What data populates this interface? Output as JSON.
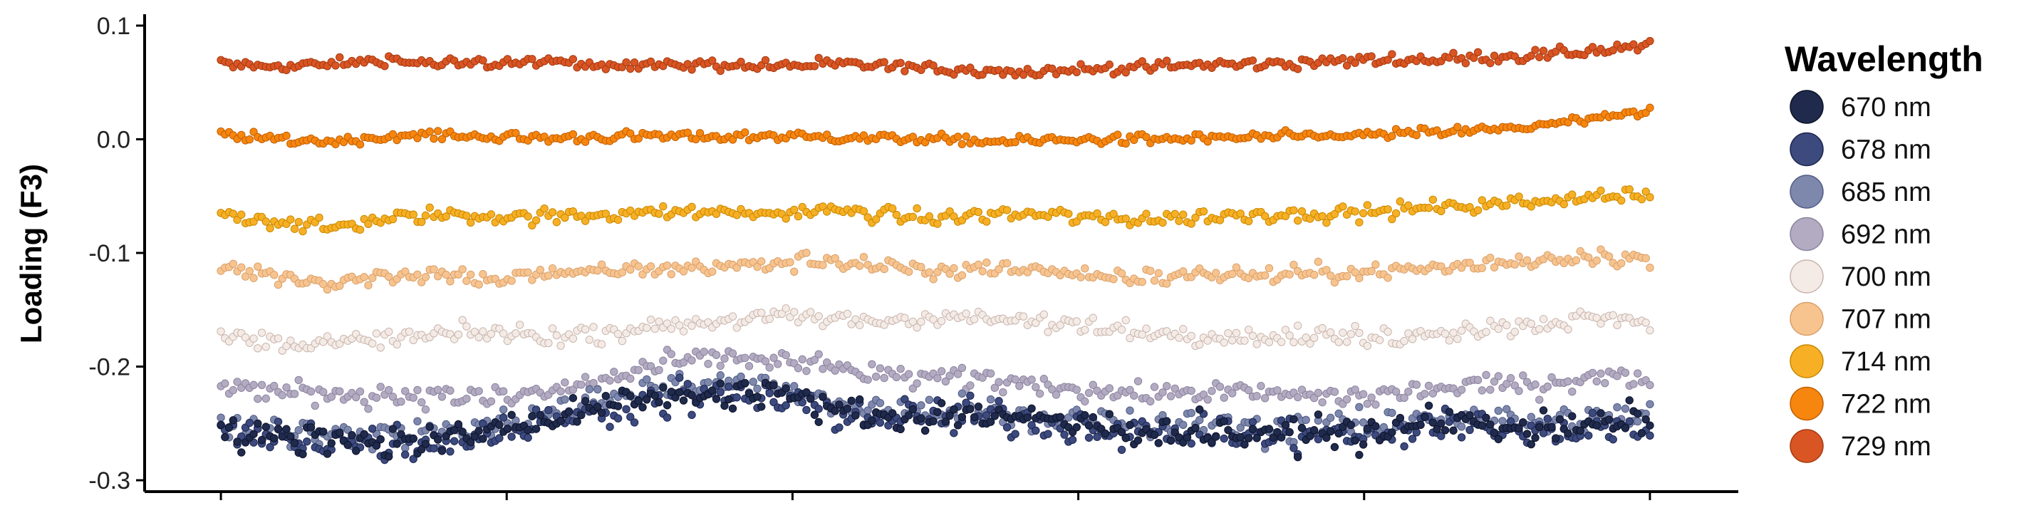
{
  "chart_data": {
    "type": "scatter",
    "title": "",
    "xlabel": "",
    "ylabel": "Loading (F3)",
    "ylim": [
      -0.31,
      0.11
    ],
    "xlim": [
      -10,
      1010
    ],
    "y_ticks": [
      "0.1",
      "0.0",
      "-0.1",
      "-0.2",
      "-0.3"
    ],
    "y_tick_values": [
      0.1,
      0.0,
      -0.1,
      -0.2,
      -0.3
    ],
    "x_ticks": [
      0,
      200,
      400,
      600,
      800,
      1000
    ],
    "x_tick_labels_shown": false,
    "points_per_series": 350,
    "grid": false,
    "legend": {
      "title": "Wavelength",
      "placement": "right"
    },
    "series": [
      {
        "name": "670 nm",
        "color": "#1f2a4d",
        "outline": "#0d1328",
        "spread": 0.011,
        "y": [
          -0.26,
          -0.262,
          -0.262,
          -0.266,
          -0.264,
          -0.254,
          -0.245,
          -0.235,
          -0.226,
          -0.224,
          -0.222,
          -0.236,
          -0.245,
          -0.243,
          -0.242,
          -0.248,
          -0.252,
          -0.258,
          -0.256,
          -0.262,
          -0.256,
          -0.262,
          -0.246,
          -0.25,
          -0.256,
          -0.252,
          -0.246
        ]
      },
      {
        "name": "678 nm",
        "color": "#3c4a7e",
        "outline": "#1e2650",
        "spread": 0.013,
        "y": [
          -0.258,
          -0.264,
          -0.264,
          -0.268,
          -0.266,
          -0.258,
          -0.248,
          -0.238,
          -0.228,
          -0.226,
          -0.228,
          -0.238,
          -0.246,
          -0.244,
          -0.244,
          -0.25,
          -0.254,
          -0.26,
          -0.258,
          -0.262,
          -0.258,
          -0.264,
          -0.25,
          -0.252,
          -0.258,
          -0.254,
          -0.25
        ]
      },
      {
        "name": "685 nm",
        "color": "#7e88ad",
        "outline": "#525d86",
        "spread": 0.01,
        "y": [
          -0.252,
          -0.256,
          -0.258,
          -0.26,
          -0.258,
          -0.252,
          -0.24,
          -0.228,
          -0.218,
          -0.215,
          -0.218,
          -0.23,
          -0.24,
          -0.238,
          -0.238,
          -0.245,
          -0.248,
          -0.254,
          -0.25,
          -0.256,
          -0.25,
          -0.254,
          -0.242,
          -0.246,
          -0.25,
          -0.246,
          -0.242
        ]
      },
      {
        "name": "692 nm",
        "color": "#b2abc1",
        "outline": "#8c84a0",
        "spread": 0.008,
        "y": [
          -0.216,
          -0.222,
          -0.224,
          -0.225,
          -0.225,
          -0.228,
          -0.222,
          -0.212,
          -0.198,
          -0.192,
          -0.194,
          -0.2,
          -0.208,
          -0.21,
          -0.212,
          -0.216,
          -0.222,
          -0.224,
          -0.222,
          -0.224,
          -0.226,
          -0.226,
          -0.22,
          -0.216,
          -0.216,
          -0.208,
          -0.212
        ]
      },
      {
        "name": "700 nm",
        "color": "#f4ebe6",
        "outline": "#c9b5ad",
        "spread": 0.007,
        "y": [
          -0.174,
          -0.178,
          -0.18,
          -0.176,
          -0.172,
          -0.17,
          -0.174,
          -0.17,
          -0.164,
          -0.16,
          -0.156,
          -0.158,
          -0.16,
          -0.156,
          -0.158,
          -0.162,
          -0.166,
          -0.17,
          -0.172,
          -0.174,
          -0.172,
          -0.176,
          -0.17,
          -0.166,
          -0.162,
          -0.158,
          -0.16
        ]
      },
      {
        "name": "707 nm",
        "color": "#f7c490",
        "outline": "#d9a06a",
        "spread": 0.006,
        "y": [
          -0.112,
          -0.12,
          -0.126,
          -0.12,
          -0.118,
          -0.124,
          -0.118,
          -0.116,
          -0.114,
          -0.112,
          -0.11,
          -0.106,
          -0.112,
          -0.118,
          -0.112,
          -0.116,
          -0.12,
          -0.122,
          -0.118,
          -0.12,
          -0.118,
          -0.116,
          -0.114,
          -0.11,
          -0.106,
          -0.102,
          -0.106
        ]
      },
      {
        "name": "714 nm",
        "color": "#f7b025",
        "outline": "#c98800",
        "spread": 0.005,
        "y": [
          -0.066,
          -0.072,
          -0.078,
          -0.07,
          -0.066,
          -0.068,
          -0.068,
          -0.066,
          -0.064,
          -0.064,
          -0.066,
          -0.062,
          -0.066,
          -0.07,
          -0.066,
          -0.066,
          -0.07,
          -0.07,
          -0.068,
          -0.066,
          -0.066,
          -0.064,
          -0.06,
          -0.058,
          -0.054,
          -0.05,
          -0.05
        ]
      },
      {
        "name": "722 nm",
        "color": "#f7860f",
        "outline": "#c25f00",
        "spread": 0.0035,
        "y": [
          0.004,
          0.0,
          -0.002,
          0.002,
          0.004,
          0.002,
          0.001,
          0.002,
          0.003,
          0.002,
          0.003,
          0.002,
          0.001,
          0.0,
          -0.002,
          -0.001,
          0.0,
          0.0,
          0.001,
          0.002,
          0.003,
          0.004,
          0.006,
          0.008,
          0.012,
          0.018,
          0.024
        ]
      },
      {
        "name": "729 nm",
        "color": "#d95523",
        "outline": "#a53a10",
        "spread": 0.004,
        "y": [
          0.066,
          0.064,
          0.066,
          0.07,
          0.066,
          0.067,
          0.068,
          0.066,
          0.065,
          0.066,
          0.064,
          0.066,
          0.065,
          0.062,
          0.06,
          0.06,
          0.062,
          0.064,
          0.066,
          0.066,
          0.068,
          0.07,
          0.07,
          0.072,
          0.074,
          0.078,
          0.082
        ]
      }
    ]
  }
}
